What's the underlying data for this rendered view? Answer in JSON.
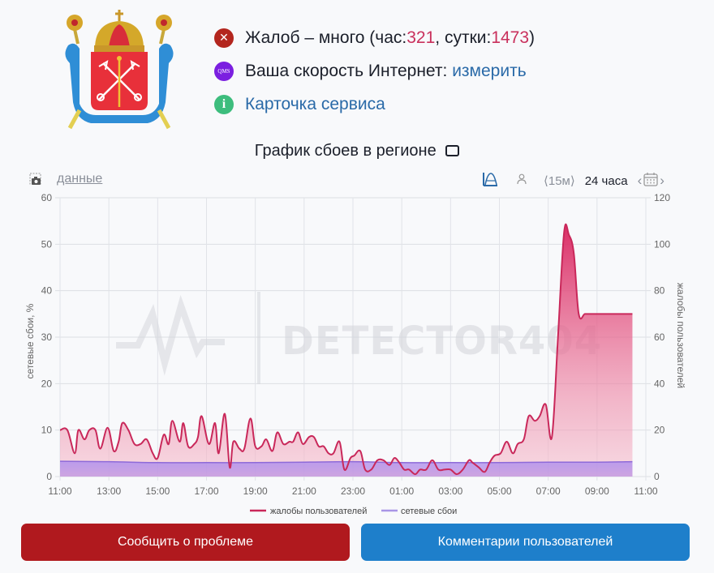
{
  "header": {
    "logo_alt": "coat-of-arms-saint-petersburg",
    "status": {
      "prefix": "Жалоб – много (час: ",
      "hour_count": "321",
      "mid": ", сутки: ",
      "day_count": "1473",
      "suffix": ")"
    },
    "speed": {
      "icon_text": "QMS",
      "label": "Ваша скорость Интернет: ",
      "link": "измерить"
    },
    "service_card": {
      "icon_text": "i",
      "link": "Карточка сервиса"
    }
  },
  "chart_section": {
    "title": "График сбоев в регионе",
    "data_link": "данные",
    "interval": "⟨15м⟩",
    "range": "24 часа"
  },
  "buttons": {
    "report": "Сообщить о проблеме",
    "comments": "Комментарии пользователей"
  },
  "colors": {
    "complaints": "#c9285a",
    "failures": "#9b7fe0",
    "report_button": "#b0191e",
    "comments_button": "#1e7fcb"
  },
  "chart_data": {
    "type": "area",
    "title": "График сбоев в регионе",
    "xlabel": "",
    "ylabel_left": "сетевые сбои, %",
    "ylabel_right": "жалобы пользователей",
    "ylim_left": [
      0,
      60
    ],
    "ylim_right": [
      0,
      120
    ],
    "yticks_left": [
      0,
      10,
      20,
      30,
      40,
      50,
      60
    ],
    "yticks_right": [
      0,
      20,
      40,
      60,
      80,
      100,
      120
    ],
    "x_ticks": [
      "11:00",
      "13:00",
      "15:00",
      "17:00",
      "19:00",
      "21:00",
      "23:00",
      "01:00",
      "03:00",
      "05:00",
      "07:00",
      "09:00",
      "11:00"
    ],
    "grid": true,
    "legend_position": "bottom",
    "legend": [
      "жалобы пользователей",
      "сетевые сбои"
    ],
    "watermark": "DETECTOR404",
    "series": [
      {
        "name": "жалобы пользователей",
        "axis": "right",
        "x_hours": [
          0,
          0.3,
          0.6,
          0.75,
          1.0,
          1.2,
          1.45,
          1.65,
          1.95,
          2.2,
          2.4,
          2.55,
          2.8,
          3.05,
          3.3,
          3.55,
          3.8,
          4.0,
          4.25,
          4.45,
          4.6,
          4.9,
          5.05,
          5.25,
          5.5,
          5.65,
          5.8,
          6.1,
          6.35,
          6.5,
          6.75,
          6.95,
          7.1,
          7.35,
          7.55,
          7.8,
          8.0,
          8.25,
          8.45,
          8.7,
          8.9,
          9.15,
          9.4,
          9.55,
          9.75,
          9.95,
          10.2,
          10.4,
          10.6,
          10.8,
          11.0,
          11.2,
          11.45,
          11.65,
          11.9,
          12.05,
          12.3,
          12.5,
          12.75,
          13.0,
          13.25,
          13.5,
          13.7,
          13.9,
          14.1,
          14.3,
          14.55,
          14.75,
          15.0,
          15.25,
          15.5,
          15.75,
          16.0,
          16.25,
          16.5,
          16.75,
          16.9,
          17.15,
          17.4,
          17.6,
          17.8,
          18.05,
          18.3,
          18.55,
          18.75,
          19.0,
          19.2,
          19.45,
          19.65,
          19.9,
          20.15,
          20.4,
          20.65,
          20.85,
          21.05,
          21.25,
          21.5,
          21.7,
          21.95,
          22.2,
          22.45,
          22.65,
          22.85,
          23.05,
          23.25,
          23.45
        ],
        "values": [
          20,
          20,
          10,
          20,
          16,
          20,
          20,
          12,
          21,
          11,
          15,
          23,
          20,
          14,
          14,
          16,
          10,
          8,
          18,
          14,
          24,
          15,
          23,
          13,
          14,
          17,
          26,
          14,
          23,
          10,
          27,
          4,
          15,
          12,
          12,
          25,
          13,
          13,
          16,
          11,
          19,
          14,
          15,
          15,
          19,
          14,
          17,
          17,
          13,
          13,
          10,
          10,
          15,
          3,
          8,
          9,
          11,
          3,
          3,
          7,
          7,
          5,
          8,
          6,
          3,
          3,
          1,
          3,
          3,
          7,
          3,
          3,
          3,
          1,
          3,
          7,
          6,
          4,
          2,
          6,
          9,
          10,
          15,
          10,
          14,
          16,
          26,
          24,
          26,
          31,
          17,
          60,
          105,
          104,
          96,
          70,
          70,
          70,
          70,
          70,
          70,
          70,
          70,
          70,
          70,
          70
        ]
      },
      {
        "name": "сетевые сбои",
        "axis": "left",
        "x_hours": [
          0,
          2,
          4,
          6,
          8,
          10,
          12,
          14,
          16,
          18,
          20,
          22,
          23.45
        ],
        "values": [
          3.3,
          3.2,
          3.0,
          3.0,
          3.0,
          3.1,
          3.2,
          3.0,
          3.0,
          3.0,
          3.1,
          3.1,
          3.2
        ]
      }
    ]
  }
}
